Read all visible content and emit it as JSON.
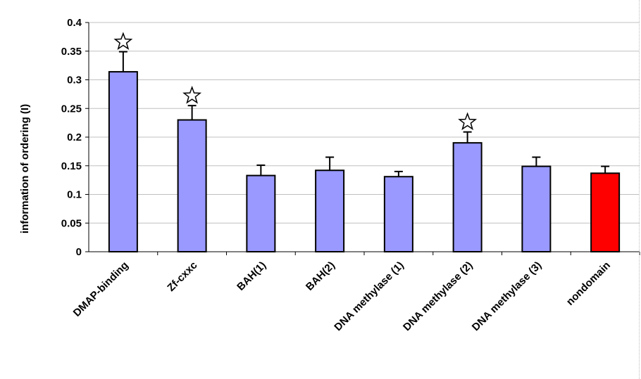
{
  "chart_data": {
    "type": "bar",
    "title": "",
    "xlabel": "",
    "ylabel": "information of ordering (I)",
    "ylim": [
      0,
      0.4
    ],
    "yticks": [
      "0",
      "0.05",
      "0.1",
      "0.15",
      "0.2",
      "0.25",
      "0.3",
      "0.35",
      "0.4"
    ],
    "grid": true,
    "categories": [
      "DMAP-binding",
      "Zf-cxxc",
      "BAH(1)",
      "BAH(2)",
      "DNA methylase (1)",
      "DNA methylase (2)",
      "DNA methylase (3)",
      "nondomain"
    ],
    "values": [
      0.314,
      0.23,
      0.133,
      0.142,
      0.131,
      0.19,
      0.149,
      0.137
    ],
    "error_upper": [
      0.035,
      0.025,
      0.018,
      0.023,
      0.009,
      0.019,
      0.016,
      0.012
    ],
    "significant": [
      true,
      true,
      false,
      false,
      false,
      true,
      false,
      false
    ],
    "colors": [
      "#9999ff",
      "#9999ff",
      "#9999ff",
      "#9999ff",
      "#9999ff",
      "#9999ff",
      "#9999ff",
      "#ff0000"
    ],
    "significance_marker": "star-outline"
  }
}
